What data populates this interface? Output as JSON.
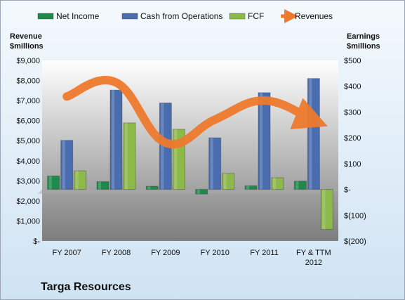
{
  "chart_data": {
    "type": "bar",
    "company": "Targa Resources",
    "categories": [
      "FY 2007",
      "FY 2008",
      "FY 2009",
      "FY 2010",
      "FY 2011",
      "FY & TTM 2012"
    ],
    "category_lines": [
      [
        "FY 2007"
      ],
      [
        "FY 2008"
      ],
      [
        "FY 2009"
      ],
      [
        "FY 2010"
      ],
      [
        "FY 2011"
      ],
      [
        "FY & TTM",
        "2012"
      ]
    ],
    "series": [
      {
        "name": "Net Income",
        "axis": "right",
        "color": "#1f8a4c",
        "values": [
          52,
          30,
          12,
          -18,
          14,
          32
        ]
      },
      {
        "name": "Cash from Operations",
        "axis": "right",
        "color": "#4a6db0",
        "values": [
          190,
          385,
          335,
          200,
          375,
          430
        ]
      },
      {
        "name": "FCF",
        "axis": "right",
        "color": "#8db84a",
        "values": [
          72,
          258,
          233,
          62,
          45,
          -155
        ]
      },
      {
        "name": "Revenues",
        "axis": "left",
        "type": "line",
        "color": "#ee7a2e",
        "values": [
          7200,
          7900,
          4900,
          6050,
          7000,
          6000
        ]
      }
    ],
    "left_axis": {
      "title_lines": [
        "Revenue",
        "$millions"
      ],
      "ylim": [
        0,
        9000
      ],
      "ticks": [
        0,
        1000,
        2000,
        3000,
        4000,
        5000,
        6000,
        7000,
        8000,
        9000
      ],
      "tick_labels": [
        "$-",
        "$1,000",
        "$2,000",
        "$3,000",
        "$4,000",
        "$5,000",
        "$6,000",
        "$7,000",
        "$8,000",
        "$9,000"
      ]
    },
    "right_axis": {
      "title_lines": [
        "Earnings",
        "$millions"
      ],
      "ylim": [
        -200,
        500
      ],
      "ticks": [
        -200,
        -100,
        0,
        100,
        200,
        300,
        400,
        500
      ],
      "tick_labels": [
        "$(200)",
        "$(100)",
        "$-",
        "$100",
        "$200",
        "$300",
        "$400",
        "$500"
      ]
    },
    "legend": {
      "position": "top",
      "entries": [
        "Net Income",
        "Cash from Operations",
        "FCF",
        "Revenues"
      ]
    }
  }
}
